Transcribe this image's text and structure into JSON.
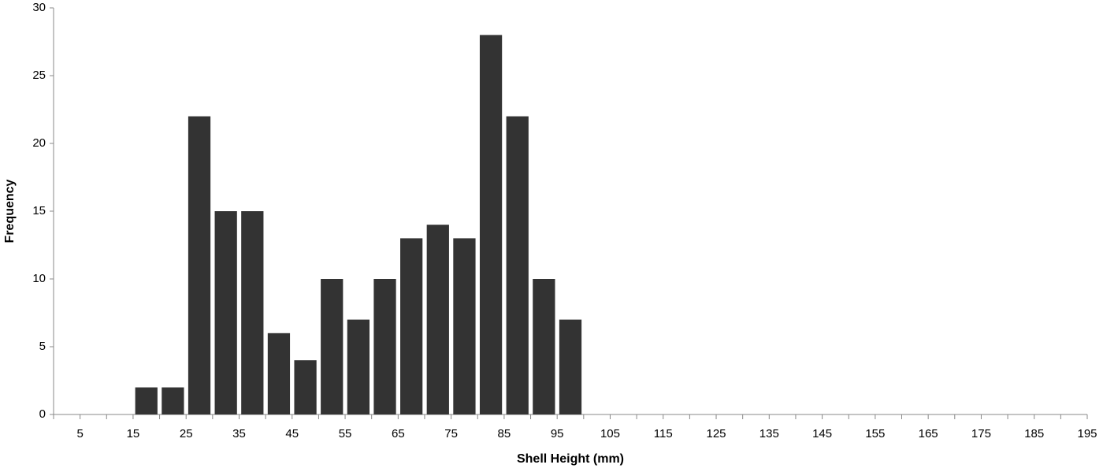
{
  "chart_data": {
    "type": "histogram",
    "x_label": "Shell Height (mm)",
    "y_label": "Frequency",
    "bins": [
      0,
      5,
      10,
      15,
      20,
      25,
      30,
      35,
      40,
      45,
      50,
      55,
      60,
      65,
      70,
      75,
      80,
      85,
      90,
      95,
      100,
      105,
      110,
      115,
      120,
      125,
      130,
      135,
      140,
      145,
      150,
      155,
      160,
      165,
      170,
      175,
      180,
      185,
      190,
      195
    ],
    "values": [
      0,
      0,
      0,
      2,
      2,
      22,
      15,
      15,
      6,
      4,
      10,
      7,
      10,
      13,
      14,
      13,
      28,
      22,
      10,
      7,
      0,
      0,
      0,
      0,
      0,
      0,
      0,
      0,
      0,
      0,
      0,
      0,
      0,
      0,
      0,
      0,
      0,
      0,
      0
    ],
    "color": "#333333",
    "xlim": [
      0,
      195
    ],
    "xticks": [
      5,
      15,
      25,
      35,
      45,
      55,
      65,
      75,
      85,
      95,
      105,
      115,
      125,
      135,
      145,
      155,
      165,
      175,
      185,
      195
    ],
    "ylim": [
      0,
      30
    ],
    "yticks": [
      0,
      5,
      10,
      15,
      20,
      25,
      30
    ]
  }
}
